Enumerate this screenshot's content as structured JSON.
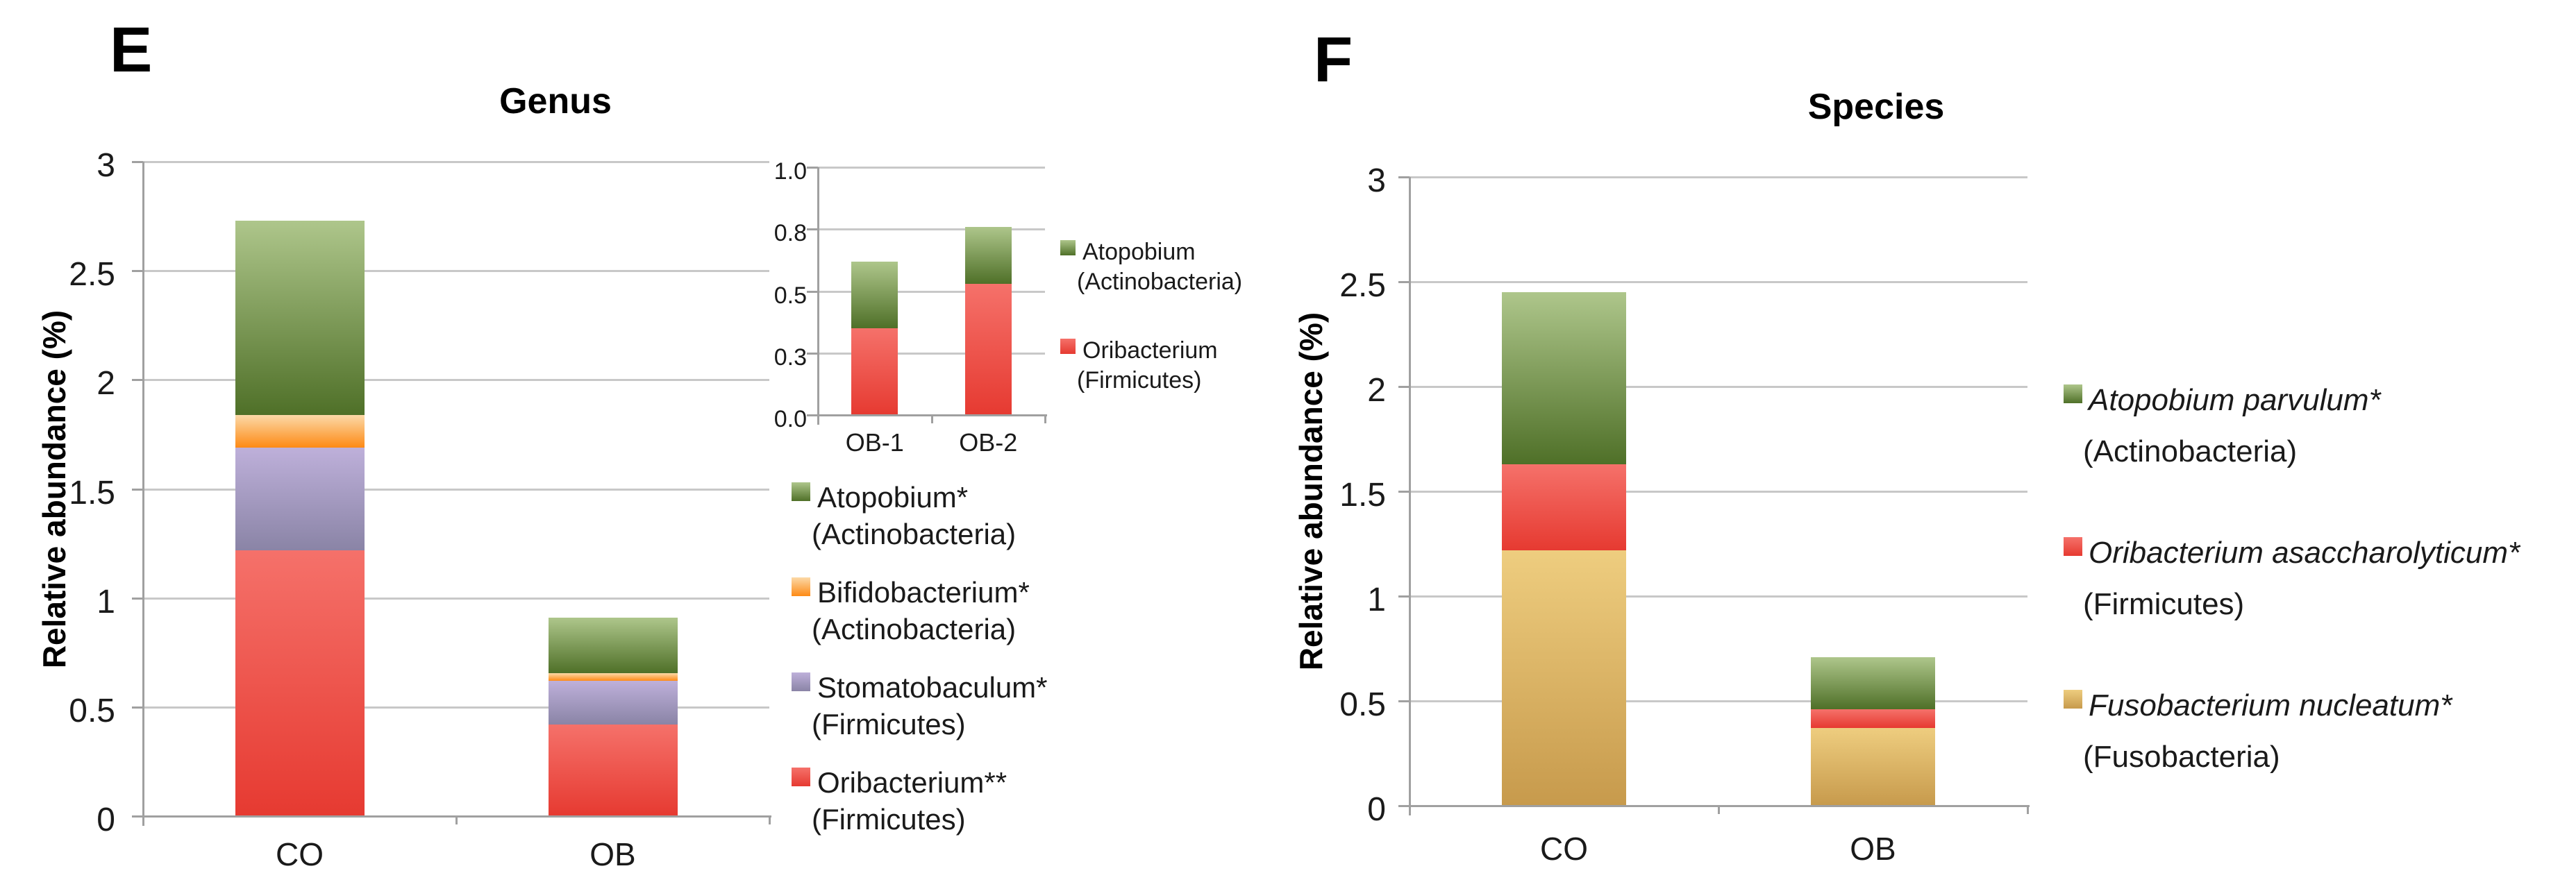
{
  "figure": {
    "panels": [
      {
        "id": "E",
        "letter": "E"
      },
      {
        "id": "F",
        "letter": "F"
      }
    ]
  },
  "colors": {
    "green": {
      "top": "#aec68b",
      "bottom": "#4f7028"
    },
    "orange": {
      "top": "#fcd9a8",
      "bottom": "#fd8a15"
    },
    "purple": {
      "top": "#beb0da",
      "bottom": "#8a84a6"
    },
    "red": {
      "top": "#f5716a",
      "bottom": "#e63a31"
    },
    "tan": {
      "top": "#eecd7f",
      "bottom": "#c79a4c"
    },
    "gridline": "#c8c8c8",
    "axis": "#a0a0a0",
    "text": "#1a1a1a"
  },
  "chart_data": [
    {
      "id": "genus-main",
      "panel": "E",
      "type": "bar",
      "subtype": "stacked",
      "title": "Genus",
      "ylabel": "Relative abundance (%)",
      "ylim": [
        0,
        3
      ],
      "ytick_labels": [
        "0",
        "0.5",
        "1",
        "1.5",
        "2",
        "2.5",
        "3"
      ],
      "ytick_values": [
        0,
        0.5,
        1,
        1.5,
        2,
        2.5,
        3
      ],
      "grid": true,
      "legend_position": "right",
      "categories": [
        "CO",
        "OB"
      ],
      "series": [
        {
          "name": "Oribacterium**",
          "phylum": "(Firmicutes)",
          "color_key": "red",
          "italic": false,
          "values": [
            1.22,
            0.42
          ]
        },
        {
          "name": "Stomatobaculum*",
          "phylum": "(Firmicutes)",
          "color_key": "purple",
          "italic": false,
          "values": [
            0.47,
            0.2
          ]
        },
        {
          "name": "Bifidobacterium*",
          "phylum": "(Actinobacteria)",
          "color_key": "orange",
          "italic": false,
          "values": [
            0.15,
            0.035
          ]
        },
        {
          "name": "Atopobium*",
          "phylum": "(Actinobacteria)",
          "color_key": "green",
          "italic": false,
          "values": [
            0.89,
            0.255
          ]
        }
      ],
      "totals": [
        2.73,
        0.91
      ],
      "legend_order": [
        3,
        2,
        1,
        0
      ]
    },
    {
      "id": "genus-inset",
      "panel": "E",
      "type": "bar",
      "subtype": "stacked",
      "title": "",
      "ylabel": "",
      "ylim": [
        0,
        1
      ],
      "ytick_labels": [
        "0.0",
        "0.3",
        "0.5",
        "0.8",
        "1.0"
      ],
      "ytick_values": [
        0,
        0.25,
        0.5,
        0.75,
        1
      ],
      "grid": true,
      "legend_position": "right",
      "categories": [
        "OB-1",
        "OB-2"
      ],
      "series": [
        {
          "name": "Oribacterium",
          "phylum": "(Firmicutes)",
          "color_key": "red",
          "italic": false,
          "values": [
            0.35,
            0.53
          ]
        },
        {
          "name": "Atopobium",
          "phylum": "(Actinobacteria)",
          "color_key": "green",
          "italic": false,
          "values": [
            0.27,
            0.23
          ]
        }
      ],
      "totals": [
        0.62,
        0.76
      ],
      "legend_order": [
        1,
        0
      ]
    },
    {
      "id": "species-main",
      "panel": "F",
      "type": "bar",
      "subtype": "stacked",
      "title": "Species",
      "ylabel": "Relative abundance (%)",
      "ylim": [
        0,
        3
      ],
      "ytick_labels": [
        "0",
        "0.5",
        "1",
        "1.5",
        "2",
        "2.5",
        "3"
      ],
      "ytick_values": [
        0,
        0.5,
        1,
        1.5,
        2,
        2.5,
        3
      ],
      "grid": true,
      "legend_position": "right",
      "categories": [
        "CO",
        "OB"
      ],
      "series": [
        {
          "name": "Fusobacterium nucleatum*",
          "phylum": "(Fusobacteria)",
          "color_key": "tan",
          "italic": true,
          "values": [
            1.22,
            0.37
          ]
        },
        {
          "name": "Oribacterium asaccharolyticum*",
          "phylum": "(Firmicutes)",
          "color_key": "red",
          "italic": true,
          "values": [
            0.41,
            0.09
          ]
        },
        {
          "name": "Atopobium parvulum*",
          "phylum": "(Actinobacteria)",
          "color_key": "green",
          "italic": true,
          "values": [
            0.82,
            0.25
          ]
        }
      ],
      "totals": [
        2.45,
        0.71
      ],
      "legend_order": [
        2,
        1,
        0
      ]
    }
  ]
}
